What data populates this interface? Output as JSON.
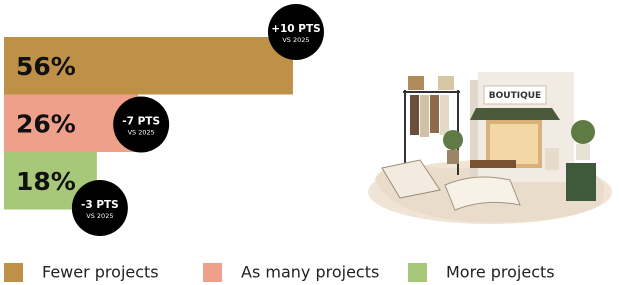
{
  "chart_data": {
    "type": "bar",
    "categories": [
      "Fewer projects",
      "As many projects",
      "More projects"
    ],
    "values": [
      56,
      26,
      18
    ],
    "value_labels": [
      "56%",
      "26%",
      "18%"
    ],
    "colors": [
      "#bf9048",
      "#eea08a",
      "#a7c878"
    ],
    "annotations": [
      {
        "change": "+10 PTS",
        "reference": "VS 2025"
      },
      {
        "change": "-7 PTS",
        "reference": "VS 2025"
      },
      {
        "change": "-3 PTS",
        "reference": "VS 2025"
      }
    ],
    "illustration_label": "BOUTIQUE"
  }
}
